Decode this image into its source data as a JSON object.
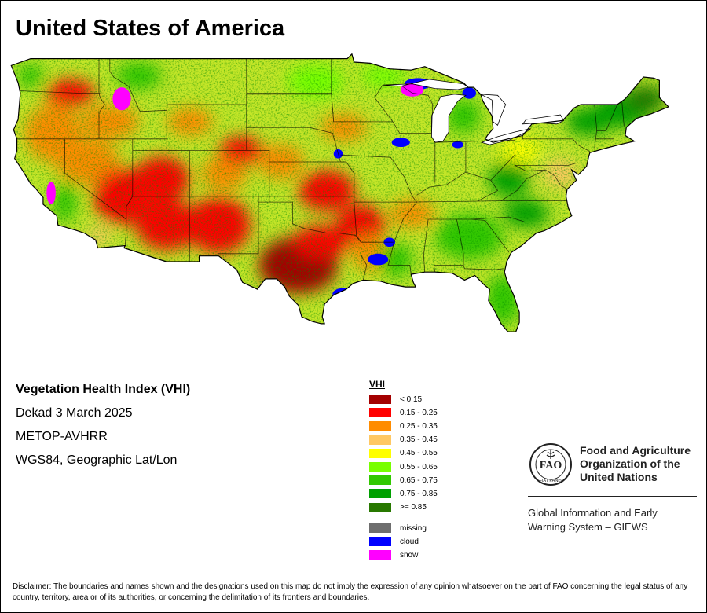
{
  "map": {
    "title": "United States of America",
    "product": "Vegetation Health Index (VHI)",
    "period": "Dekad 3 March 2025",
    "sensor": "METOP-AVHRR",
    "projection": "WGS84, Geographic Lat/Lon",
    "base_color": "#c4e628",
    "patches": [
      {
        "lon": -119.5,
        "lat": 46.0,
        "rx": 2.2,
        "ry": 1.2,
        "cls": 1
      },
      {
        "lon": -121.0,
        "lat": 42.5,
        "rx": 2.5,
        "ry": 2.5,
        "cls": 2
      },
      {
        "lon": -116.0,
        "lat": 43.5,
        "rx": 2.5,
        "ry": 1.5,
        "cls": 2
      },
      {
        "lon": -118.0,
        "lat": 40.0,
        "rx": 2.8,
        "ry": 2.0,
        "cls": 2
      },
      {
        "lon": -115.0,
        "lat": 37.0,
        "rx": 2.5,
        "ry": 2.5,
        "cls": 1
      },
      {
        "lon": -111.5,
        "lat": 38.5,
        "rx": 2.5,
        "ry": 2.0,
        "cls": 1
      },
      {
        "lon": -111.0,
        "lat": 34.5,
        "rx": 2.8,
        "ry": 2.2,
        "cls": 1
      },
      {
        "lon": -106.5,
        "lat": 34.5,
        "rx": 2.8,
        "ry": 2.5,
        "cls": 1
      },
      {
        "lon": -106.0,
        "lat": 39.0,
        "rx": 2.0,
        "ry": 1.5,
        "cls": 2
      },
      {
        "lon": -104.5,
        "lat": 41.0,
        "rx": 2.0,
        "ry": 1.2,
        "cls": 1
      },
      {
        "lon": -109.0,
        "lat": 43.5,
        "rx": 2.0,
        "ry": 1.2,
        "cls": 2
      },
      {
        "lon": -101.0,
        "lat": 40.0,
        "rx": 2.0,
        "ry": 1.5,
        "cls": 2
      },
      {
        "lon": -97.0,
        "lat": 37.5,
        "rx": 2.5,
        "ry": 1.8,
        "cls": 1
      },
      {
        "lon": -99.5,
        "lat": 31.0,
        "rx": 3.5,
        "ry": 2.5,
        "cls": 0
      },
      {
        "lon": -97.5,
        "lat": 33.0,
        "rx": 2.5,
        "ry": 1.5,
        "cls": 1
      },
      {
        "lon": -94.0,
        "lat": 34.5,
        "rx": 2.2,
        "ry": 1.8,
        "cls": 1
      },
      {
        "lon": -93.0,
        "lat": 32.0,
        "rx": 1.8,
        "ry": 1.5,
        "cls": 2
      },
      {
        "lon": -89.5,
        "lat": 35.5,
        "rx": 2.0,
        "ry": 1.2,
        "cls": 2
      },
      {
        "lon": -95.5,
        "lat": 43.0,
        "rx": 2.0,
        "ry": 1.2,
        "cls": 2
      },
      {
        "lon": -80.0,
        "lat": 41.0,
        "rx": 1.8,
        "ry": 1.2,
        "cls": 4
      },
      {
        "lon": -76.5,
        "lat": 39.0,
        "rx": 1.5,
        "ry": 1.2,
        "cls": 3
      },
      {
        "lon": -120.0,
        "lat": 36.5,
        "rx": 1.0,
        "ry": 1.8,
        "cls": 6
      },
      {
        "lon": -117.0,
        "lat": 33.5,
        "rx": 1.0,
        "ry": 0.8,
        "cls": 3
      },
      {
        "lon": -84.5,
        "lat": 33.5,
        "rx": 3.0,
        "ry": 2.0,
        "cls": 6
      },
      {
        "lon": -81.5,
        "lat": 28.0,
        "rx": 1.5,
        "ry": 2.2,
        "cls": 6
      },
      {
        "lon": -79.5,
        "lat": 35.5,
        "rx": 2.0,
        "ry": 1.2,
        "cls": 7
      },
      {
        "lon": -81.0,
        "lat": 38.5,
        "rx": 1.8,
        "ry": 1.5,
        "cls": 7
      },
      {
        "lon": -74.0,
        "lat": 43.5,
        "rx": 2.0,
        "ry": 1.2,
        "cls": 7
      },
      {
        "lon": -71.0,
        "lat": 44.5,
        "rx": 2.5,
        "ry": 1.5,
        "cls": 7
      },
      {
        "lon": -69.0,
        "lat": 45.5,
        "rx": 1.8,
        "ry": 1.2,
        "cls": 8
      },
      {
        "lon": -85.0,
        "lat": 44.0,
        "rx": 1.5,
        "ry": 1.5,
        "cls": 6
      },
      {
        "lon": -92.0,
        "lat": 47.5,
        "rx": 2.0,
        "ry": 1.0,
        "cls": 5
      },
      {
        "lon": -98.0,
        "lat": 47.0,
        "rx": 2.5,
        "ry": 1.5,
        "cls": 5
      },
      {
        "lon": -113.5,
        "lat": 47.5,
        "rx": 2.0,
        "ry": 1.2,
        "cls": 6
      },
      {
        "lon": -123.0,
        "lat": 47.5,
        "rx": 1.2,
        "ry": 1.0,
        "cls": 6
      },
      {
        "lon": -91.0,
        "lat": 31.5,
        "rx": 1.5,
        "ry": 1.5,
        "cls": 6
      }
    ],
    "cloud_patches": [
      {
        "lon": -89.0,
        "lat": 46.8,
        "rx": 1.2,
        "ry": 0.5
      },
      {
        "lon": -84.5,
        "lat": 46.0,
        "rx": 0.6,
        "ry": 0.5
      },
      {
        "lon": -92.5,
        "lat": 31.5,
        "rx": 0.9,
        "ry": 0.5
      },
      {
        "lon": -91.5,
        "lat": 33.0,
        "rx": 0.5,
        "ry": 0.4
      },
      {
        "lon": -95.5,
        "lat": 28.5,
        "rx": 1.0,
        "ry": 0.5
      },
      {
        "lon": -90.5,
        "lat": 41.7,
        "rx": 0.8,
        "ry": 0.4
      },
      {
        "lon": -85.5,
        "lat": 41.5,
        "rx": 0.5,
        "ry": 0.3
      },
      {
        "lon": -96.0,
        "lat": 40.7,
        "rx": 0.4,
        "ry": 0.4
      }
    ],
    "snow_patches": [
      {
        "lon": -89.5,
        "lat": 46.3,
        "rx": 1.0,
        "ry": 0.6
      },
      {
        "lon": -115.0,
        "lat": 45.5,
        "rx": 0.8,
        "ry": 1.0
      },
      {
        "lon": -121.2,
        "lat": 37.3,
        "rx": 0.4,
        "ry": 1.0
      }
    ]
  },
  "legend": {
    "title": "VHI",
    "classes": [
      {
        "label": "< 0.15",
        "color": "#a40000"
      },
      {
        "label": "0.15 - 0.25",
        "color": "#ff0000"
      },
      {
        "label": "0.25 - 0.35",
        "color": "#ff8c00"
      },
      {
        "label": "0.35 - 0.45",
        "color": "#ffc864"
      },
      {
        "label": "0.45 - 0.55",
        "color": "#ffff00"
      },
      {
        "label": "0.55 - 0.65",
        "color": "#78ff00"
      },
      {
        "label": "0.65 - 0.75",
        "color": "#32c800"
      },
      {
        "label": "0.75 - 0.85",
        "color": "#00a000"
      },
      {
        "label": ">= 0.85",
        "color": "#287800"
      }
    ],
    "other": [
      {
        "label": "missing",
        "color": "#6e6e6e"
      },
      {
        "label": "cloud",
        "color": "#0000ff"
      },
      {
        "label": "snow",
        "color": "#ff00ff"
      }
    ]
  },
  "fao": {
    "name_line1": "Food and Agriculture",
    "name_line2": "Organization of the",
    "name_line3": "United Nations",
    "logo_text": "FAO",
    "logo_motto": "FIAT PANIS",
    "giews_line1": "Global Information and Early",
    "giews_line2": "Warning System – GIEWS"
  },
  "disclaimer": "Disclaimer: The boundaries and names shown and the designations used on this map do not imply the expression of any opinion whatsoever on the part of FAO concerning the legal status of any country, territory, area or of its authorities, or concerning the delimitation of its frontiers and boundaries."
}
